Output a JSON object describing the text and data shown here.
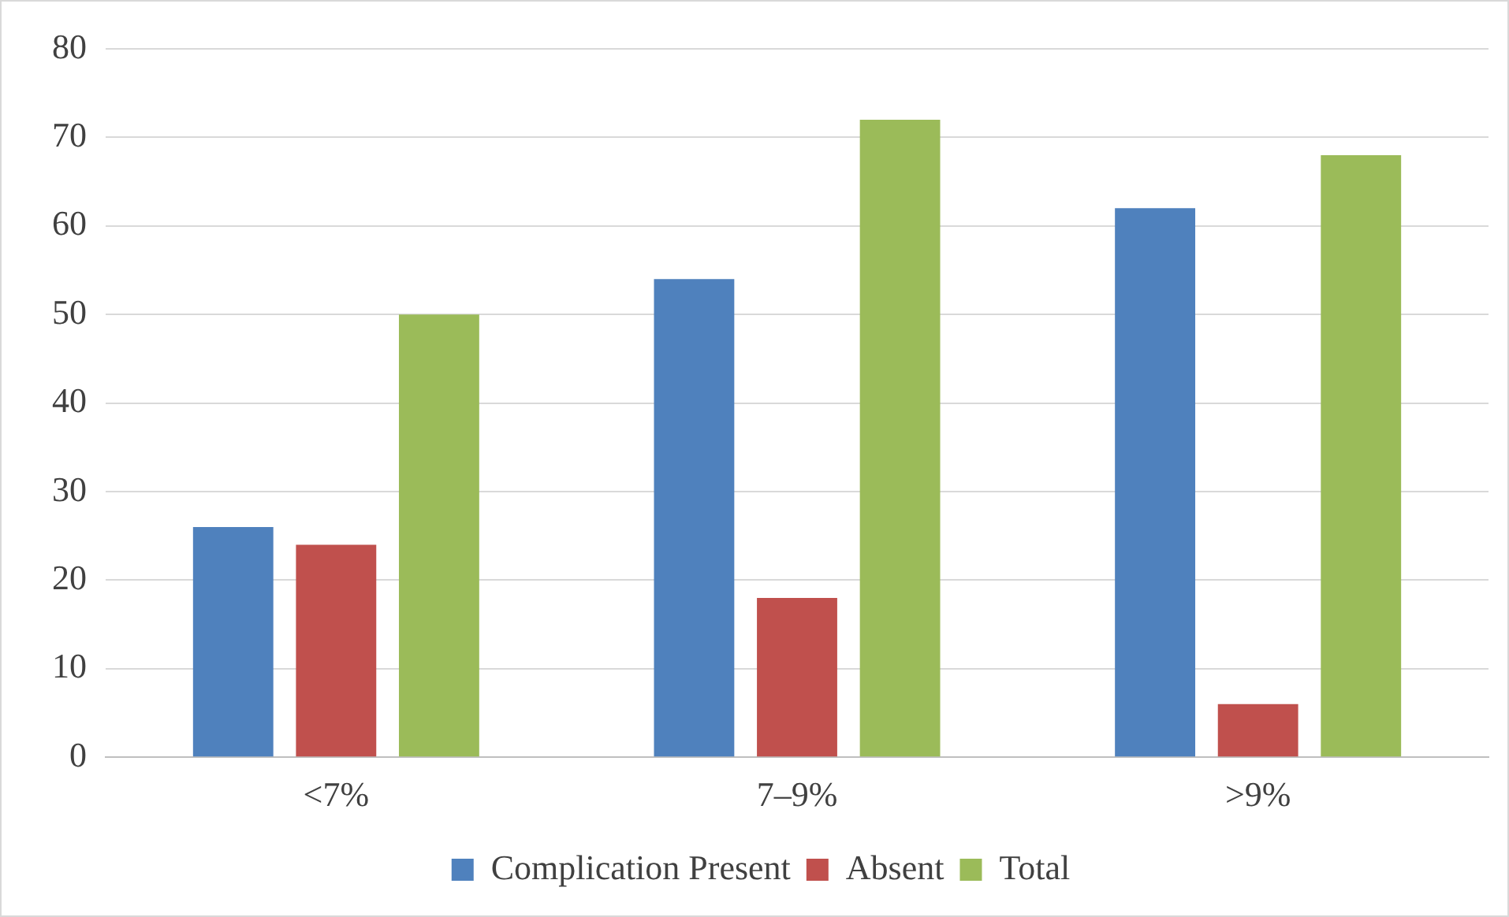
{
  "chart_data": {
    "type": "bar",
    "categories": [
      "<7%",
      "7–9%",
      ">9%"
    ],
    "series": [
      {
        "name": "Complication Present",
        "color": "#4f81bd",
        "values": [
          26,
          54,
          62
        ]
      },
      {
        "name": "Absent",
        "color": "#c0504d",
        "values": [
          24,
          18,
          6
        ]
      },
      {
        "name": "Total",
        "color": "#9bbb59",
        "values": [
          50,
          72,
          68
        ]
      }
    ],
    "ylim": [
      0,
      80
    ],
    "yticks": [
      0,
      10,
      20,
      30,
      40,
      50,
      60,
      70,
      80
    ],
    "grid": "y",
    "legend": "bottom"
  }
}
